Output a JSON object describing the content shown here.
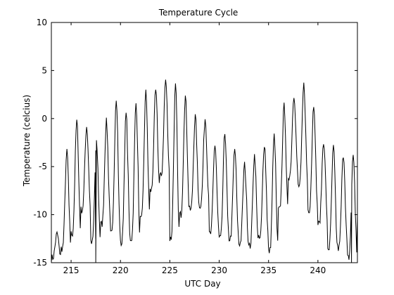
{
  "chart_data": {
    "type": "line",
    "title": "Temperature Cycle",
    "xlabel": "UTC Day",
    "ylabel": "Temperature (celcius)",
    "xlim": [
      213,
      244
    ],
    "ylim": [
      -15,
      10
    ],
    "xticks": [
      215,
      220,
      225,
      230,
      235,
      240
    ],
    "yticks": [
      -15,
      -10,
      -5,
      0,
      5,
      10
    ],
    "grid": false,
    "legend": "none",
    "colors": {
      "line": "#000000",
      "axes": "#000000",
      "background": "#ffffff"
    },
    "daily_cycles": [
      {
        "day": 213,
        "max": -12.0,
        "min": -14.5
      },
      {
        "day": 214,
        "max": -3.5,
        "min": -13.5
      },
      {
        "day": 215,
        "max": -0.3,
        "min": -12.0
      },
      {
        "day": 216,
        "max": -0.8,
        "min": -9.5
      },
      {
        "day": 217,
        "max": -2.6,
        "min": -13.0
      },
      {
        "day": 218,
        "max": -0.3,
        "min": -11.0
      },
      {
        "day": 219,
        "max": 2.2,
        "min": -12.0
      },
      {
        "day": 220,
        "max": 0.5,
        "min": -13.0
      },
      {
        "day": 221,
        "max": 1.6,
        "min": -12.5
      },
      {
        "day": 222,
        "max": 2.7,
        "min": -10.5
      },
      {
        "day": 223,
        "max": 2.9,
        "min": -7.5
      },
      {
        "day": 224,
        "max": 4.0,
        "min": -6.0
      },
      {
        "day": 225,
        "max": 3.4,
        "min": -12.5
      },
      {
        "day": 226,
        "max": 2.3,
        "min": -10.0
      },
      {
        "day": 227,
        "max": 0.2,
        "min": -9.5
      },
      {
        "day": 228,
        "max": 0.0,
        "min": -9.0
      },
      {
        "day": 229,
        "max": -2.7,
        "min": -12.0
      },
      {
        "day": 230,
        "max": -1.5,
        "min": -12.5
      },
      {
        "day": 231,
        "max": -3.2,
        "min": -12.5
      },
      {
        "day": 232,
        "max": -4.8,
        "min": -13.0
      },
      {
        "day": 233,
        "max": -3.8,
        "min": -13.3
      },
      {
        "day": 234,
        "max": -2.6,
        "min": -12.5
      },
      {
        "day": 235,
        "max": -1.8,
        "min": -13.8
      },
      {
        "day": 236,
        "max": 1.3,
        "min": -9.5
      },
      {
        "day": 237,
        "max": 2.5,
        "min": -6.0
      },
      {
        "day": 238,
        "max": 3.5,
        "min": -7.0
      },
      {
        "day": 239,
        "max": 1.5,
        "min": -9.5
      },
      {
        "day": 240,
        "max": -2.3,
        "min": -11.0
      },
      {
        "day": 241,
        "max": -3.0,
        "min": -13.5
      },
      {
        "day": 242,
        "max": -3.7,
        "min": -13.5
      },
      {
        "day": 243,
        "max": -3.8,
        "min": -14.5
      },
      {
        "day": 244,
        "max": -3.5,
        "min": -10.0
      }
    ],
    "spikes": [
      {
        "day": 217.5,
        "value": -15
      },
      {
        "day": 243.4,
        "value": -15
      }
    ]
  }
}
